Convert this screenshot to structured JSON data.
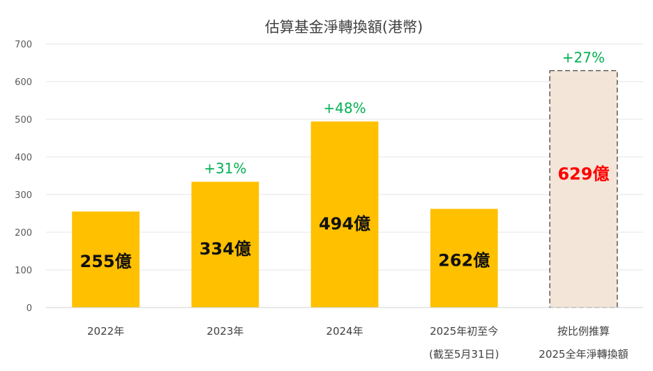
{
  "chart_data": {
    "type": "bar",
    "title": "估算基金淨轉換額(港幣)",
    "xlabel": "",
    "ylabel": "",
    "ylim": [
      0,
      700
    ],
    "yticks": [
      "0",
      "100",
      "200",
      "300",
      "400",
      "500",
      "600",
      "700"
    ],
    "grid": true,
    "categories": [
      [
        "2022年"
      ],
      [
        "2023年"
      ],
      [
        "2024年"
      ],
      [
        "2025年初至今",
        "(截至5月31日)"
      ],
      [
        "按比例推算",
        "2025全年淨轉換額"
      ]
    ],
    "values": [
      255,
      334,
      494,
      262,
      629
    ],
    "data_labels": [
      "255億",
      "334億",
      "494億",
      "262億",
      "629億"
    ],
    "growth_labels": [
      "",
      "+31%",
      "+48%",
      "",
      "+27%"
    ],
    "estimated": [
      false,
      false,
      false,
      false,
      true
    ],
    "colors": {
      "bar": "#ffc000",
      "estimated_fill": "#f3e5d7",
      "estimated_border": "#404040",
      "estimated_label": "#ff0000",
      "growth": "#00b050"
    }
  }
}
